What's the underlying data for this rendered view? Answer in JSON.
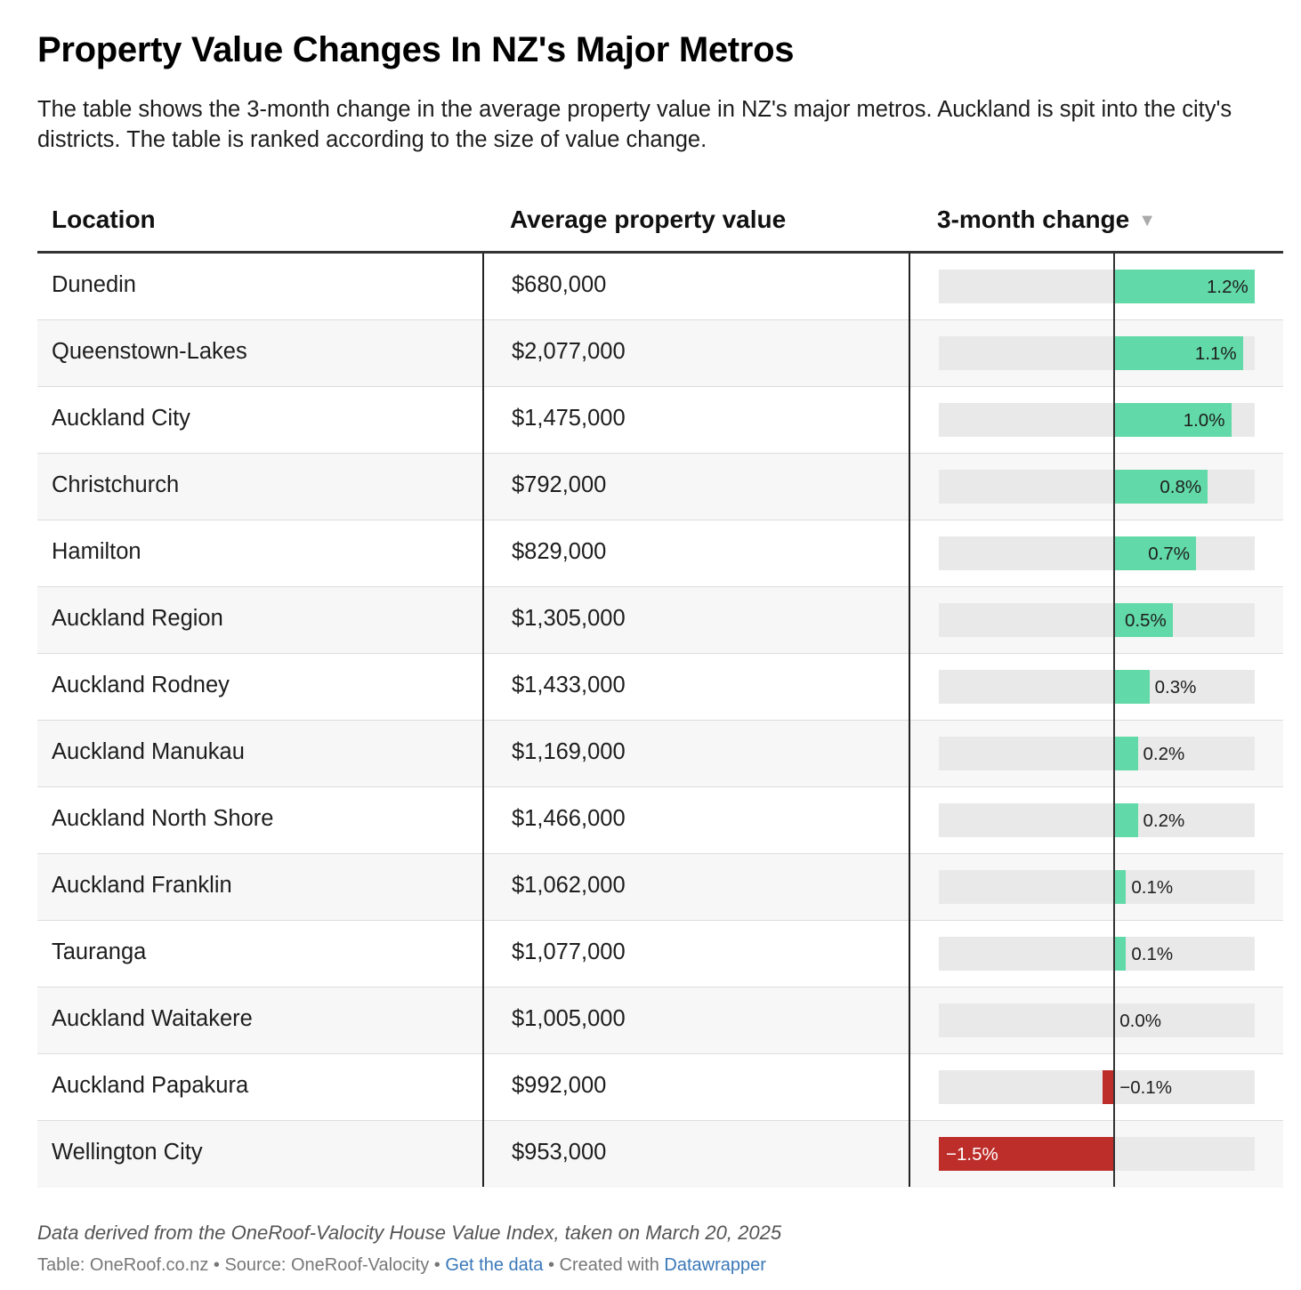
{
  "title": "Property Value Changes In NZ's Major Metros",
  "description": "The table shows the 3-month change in the average property value in NZ's major metros. Auckland is spit into the city's districts. The table is ranked according to the size of value change.",
  "columns": {
    "location": "Location",
    "value": "Average property value",
    "change": "3-month change",
    "sort_icon": "▼"
  },
  "colors": {
    "positive": "#62d9a8",
    "negative": "#bd2e2a",
    "track": "#e9e9e9"
  },
  "chart_data": {
    "type": "table",
    "bar_range": [
      -1.5,
      1.2
    ],
    "rows": [
      {
        "location": "Dunedin",
        "value": "$680,000",
        "change": 1.2,
        "change_label": "1.2%"
      },
      {
        "location": "Queenstown-Lakes",
        "value": "$2,077,000",
        "change": 1.1,
        "change_label": "1.1%"
      },
      {
        "location": "Auckland City",
        "value": "$1,475,000",
        "change": 1.0,
        "change_label": "1.0%"
      },
      {
        "location": "Christchurch",
        "value": "$792,000",
        "change": 0.8,
        "change_label": "0.8%"
      },
      {
        "location": "Hamilton",
        "value": "$829,000",
        "change": 0.7,
        "change_label": "0.7%"
      },
      {
        "location": "Auckland Region",
        "value": "$1,305,000",
        "change": 0.5,
        "change_label": "0.5%"
      },
      {
        "location": "Auckland Rodney",
        "value": "$1,433,000",
        "change": 0.3,
        "change_label": "0.3%"
      },
      {
        "location": "Auckland Manukau",
        "value": "$1,169,000",
        "change": 0.2,
        "change_label": "0.2%"
      },
      {
        "location": "Auckland North Shore",
        "value": "$1,466,000",
        "change": 0.2,
        "change_label": "0.2%"
      },
      {
        "location": "Auckland Franklin",
        "value": "$1,062,000",
        "change": 0.1,
        "change_label": "0.1%"
      },
      {
        "location": "Tauranga",
        "value": "$1,077,000",
        "change": 0.1,
        "change_label": "0.1%"
      },
      {
        "location": "Auckland Waitakere",
        "value": "$1,005,000",
        "change": 0.0,
        "change_label": "0.0%"
      },
      {
        "location": "Auckland Papakura",
        "value": "$992,000",
        "change": -0.1,
        "change_label": "−0.1%"
      },
      {
        "location": "Wellington City",
        "value": "$953,000",
        "change": -1.5,
        "change_label": "−1.5%"
      }
    ]
  },
  "notes": "Data derived from the OneRoof-Valocity House Value Index, taken on March 20, 2025",
  "footer": {
    "table_credit": "Table: OneRoof.co.nz",
    "separator": " • ",
    "source": "Source: OneRoof-Valocity",
    "get_data": "Get the data",
    "created_with": "Created with",
    "tool": "Datawrapper"
  }
}
